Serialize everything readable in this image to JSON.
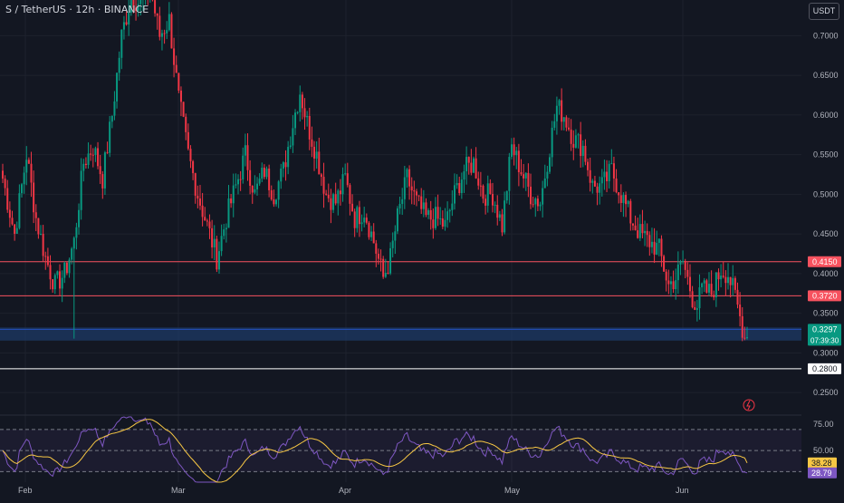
{
  "header": {
    "title": "S / TetherUS · 12h · BINANCE",
    "currency_badge": "USDT"
  },
  "colors": {
    "background": "#131722",
    "grid": "#1e222d",
    "up": "#089981",
    "down": "#f23645",
    "resistance_line": "#f7525f",
    "support_line": "#ffffff",
    "current_zone": "#1e3a66",
    "rsi_line": "#7e57c2",
    "rsi_ma": "#f7c744"
  },
  "chart_data": [
    {
      "type": "candlestick",
      "title": "S / TetherUS · 12h · BINANCE",
      "y_axis_ticks": [
        "0.7000",
        "0.6500",
        "0.6000",
        "0.5500",
        "0.5000",
        "0.4500",
        "0.4000",
        "0.3500",
        "0.3000",
        "0.2500"
      ],
      "ylim": [
        0.225,
        0.745
      ],
      "x_axis_labels": [
        "Feb",
        "Mar",
        "Apr",
        "May",
        "Jun"
      ],
      "grid": true,
      "horizontal_levels": [
        {
          "value": 0.415,
          "label": "0.4150",
          "color": "#f7525f"
        },
        {
          "value": 0.372,
          "label": "0.3720",
          "color": "#f7525f"
        },
        {
          "value": 0.28,
          "label": "0.2800",
          "color": "#ffffff"
        }
      ],
      "current_price": {
        "value": 0.3297,
        "label": "0.3297",
        "countdown": "07:39:30"
      },
      "current_zone": [
        0.3155,
        0.332
      ],
      "anchors_close": [
        [
          0,
          0.52
        ],
        [
          5,
          0.45
        ],
        [
          10,
          0.55
        ],
        [
          14,
          0.47
        ],
        [
          18,
          0.42
        ],
        [
          22,
          0.385
        ],
        [
          26,
          0.4
        ],
        [
          30,
          0.44
        ],
        [
          34,
          0.54
        ],
        [
          38,
          0.56
        ],
        [
          42,
          0.52
        ],
        [
          46,
          0.6
        ],
        [
          50,
          0.7
        ],
        [
          54,
          0.75
        ],
        [
          58,
          0.74
        ],
        [
          62,
          0.76
        ],
        [
          66,
          0.7
        ],
        [
          70,
          0.72
        ],
        [
          74,
          0.62
        ],
        [
          78,
          0.55
        ],
        [
          82,
          0.5
        ],
        [
          86,
          0.46
        ],
        [
          90,
          0.42
        ],
        [
          94,
          0.47
        ],
        [
          98,
          0.51
        ],
        [
          102,
          0.55
        ],
        [
          106,
          0.5
        ],
        [
          110,
          0.53
        ],
        [
          114,
          0.5
        ],
        [
          118,
          0.53
        ],
        [
          122,
          0.59
        ],
        [
          125,
          0.63
        ],
        [
          128,
          0.59
        ],
        [
          132,
          0.55
        ],
        [
          136,
          0.5
        ],
        [
          140,
          0.49
        ],
        [
          144,
          0.52
        ],
        [
          148,
          0.47
        ],
        [
          152,
          0.48
        ],
        [
          156,
          0.44
        ],
        [
          160,
          0.395
        ],
        [
          163,
          0.42
        ],
        [
          166,
          0.47
        ],
        [
          170,
          0.52
        ],
        [
          174,
          0.49
        ],
        [
          178,
          0.47
        ],
        [
          182,
          0.47
        ],
        [
          186,
          0.46
        ],
        [
          190,
          0.5
        ],
        [
          194,
          0.53
        ],
        [
          198,
          0.54
        ],
        [
          202,
          0.5
        ],
        [
          206,
          0.5
        ],
        [
          210,
          0.46
        ],
        [
          214,
          0.56
        ],
        [
          218,
          0.53
        ],
        [
          222,
          0.5
        ],
        [
          226,
          0.49
        ],
        [
          230,
          0.56
        ],
        [
          233,
          0.61
        ],
        [
          236,
          0.6
        ],
        [
          240,
          0.57
        ],
        [
          244,
          0.56
        ],
        [
          248,
          0.51
        ],
        [
          252,
          0.51
        ],
        [
          256,
          0.53
        ],
        [
          260,
          0.5
        ],
        [
          264,
          0.47
        ],
        [
          268,
          0.45
        ],
        [
          272,
          0.44
        ],
        [
          276,
          0.43
        ],
        [
          280,
          0.385
        ],
        [
          283,
          0.395
        ],
        [
          286,
          0.415
        ],
        [
          290,
          0.37
        ],
        [
          292,
          0.36
        ],
        [
          294,
          0.38
        ],
        [
          298,
          0.375
        ],
        [
          302,
          0.405
        ],
        [
          305,
          0.4
        ],
        [
          308,
          0.37
        ],
        [
          312,
          0.32
        ],
        [
          313,
          0.33
        ]
      ]
    },
    {
      "type": "line",
      "title": "RSI",
      "y_axis_ticks": [
        "75.00",
        "50.00"
      ],
      "ylim": [
        20,
        82
      ],
      "reference_levels": [
        70,
        50,
        30
      ],
      "series": [
        {
          "current": 28.79,
          "label": "28.79",
          "color": "#7e57c2"
        },
        {
          "current": 38.28,
          "label": "38.28",
          "color": "#f7c744"
        }
      ]
    }
  ]
}
